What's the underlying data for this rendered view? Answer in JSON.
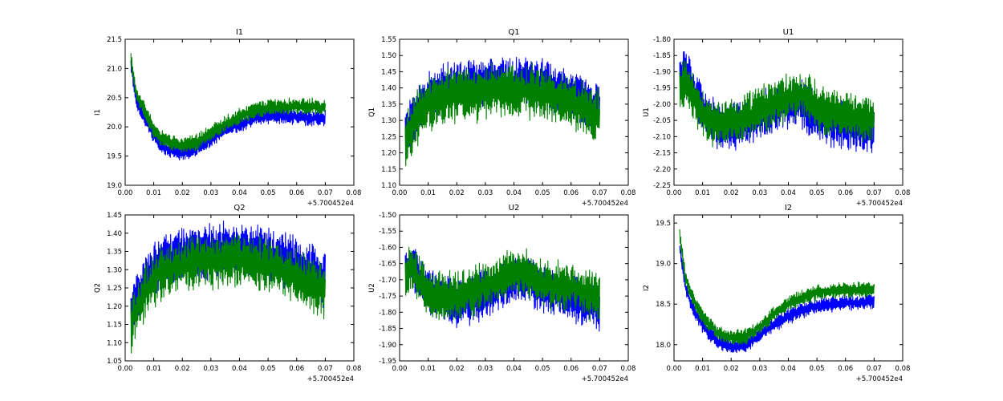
{
  "colors": {
    "series_1": "#0000ff",
    "series_2": "#008000",
    "frame": "#000000",
    "background": "#ffffff"
  },
  "chart_data": [
    {
      "type": "line",
      "title": "I1",
      "ylabel": "I1",
      "xlim": [
        0.0,
        0.08
      ],
      "ylim": [
        19.0,
        21.5
      ],
      "x_ticks": [
        "0.00",
        "0.01",
        "0.02",
        "0.03",
        "0.04",
        "0.05",
        "0.06",
        "0.07",
        "0.08"
      ],
      "y_ticks": [
        "19.0",
        "19.5",
        "20.0",
        "20.5",
        "21.0",
        "21.5"
      ],
      "x_offset_label": "+5.700452e4",
      "x": [
        0.002,
        0.004,
        0.006,
        0.008,
        0.01,
        0.012,
        0.015,
        0.02,
        0.025,
        0.03,
        0.035,
        0.04,
        0.045,
        0.05,
        0.055,
        0.06,
        0.065,
        0.07
      ],
      "series": [
        {
          "color": "blue",
          "values": [
            21.05,
            20.45,
            20.25,
            20.05,
            19.85,
            19.7,
            19.62,
            19.55,
            19.62,
            19.8,
            19.95,
            20.05,
            20.15,
            20.2,
            20.2,
            20.18,
            20.15,
            20.15
          ],
          "amplitude": 0.13
        },
        {
          "color": "green",
          "values": [
            21.15,
            20.55,
            20.35,
            20.15,
            19.95,
            19.82,
            19.75,
            19.68,
            19.74,
            19.9,
            20.05,
            20.18,
            20.28,
            20.33,
            20.35,
            20.35,
            20.35,
            20.33
          ],
          "amplitude": 0.13
        }
      ]
    },
    {
      "type": "line",
      "title": "Q1",
      "ylabel": "Q1",
      "xlim": [
        0.0,
        0.08
      ],
      "ylim": [
        1.1,
        1.55
      ],
      "x_ticks": [
        "0.00",
        "0.01",
        "0.02",
        "0.03",
        "0.04",
        "0.05",
        "0.06",
        "0.07",
        "0.08"
      ],
      "y_ticks": [
        "1.10",
        "1.15",
        "1.20",
        "1.25",
        "1.30",
        "1.35",
        "1.40",
        "1.45",
        "1.50",
        "1.55"
      ],
      "x_offset_label": "+5.700452e4",
      "x": [
        0.002,
        0.004,
        0.006,
        0.008,
        0.01,
        0.012,
        0.015,
        0.02,
        0.025,
        0.03,
        0.035,
        0.04,
        0.045,
        0.05,
        0.055,
        0.06,
        0.065,
        0.07
      ],
      "series": [
        {
          "color": "blue",
          "values": [
            1.25,
            1.3,
            1.32,
            1.35,
            1.37,
            1.38,
            1.4,
            1.41,
            1.41,
            1.42,
            1.42,
            1.42,
            1.42,
            1.41,
            1.4,
            1.38,
            1.36,
            1.33
          ],
          "amplitude": 0.07
        },
        {
          "color": "green",
          "values": [
            1.23,
            1.27,
            1.3,
            1.33,
            1.35,
            1.36,
            1.37,
            1.38,
            1.38,
            1.39,
            1.39,
            1.39,
            1.39,
            1.38,
            1.37,
            1.35,
            1.33,
            1.31
          ],
          "amplitude": 0.08
        }
      ]
    },
    {
      "type": "line",
      "title": "U1",
      "ylabel": "U1",
      "xlim": [
        0.0,
        0.08
      ],
      "ylim": [
        -2.25,
        -1.8
      ],
      "x_ticks": [
        "0.00",
        "0.01",
        "0.02",
        "0.03",
        "0.04",
        "0.05",
        "0.06",
        "0.07",
        "0.08"
      ],
      "y_ticks": [
        "-2.25",
        "-2.20",
        "-2.15",
        "-2.10",
        "-2.05",
        "-2.00",
        "-1.95",
        "-1.90",
        "-1.85",
        "-1.80"
      ],
      "x_offset_label": "+5.700452e4",
      "x": [
        0.002,
        0.004,
        0.006,
        0.008,
        0.01,
        0.012,
        0.015,
        0.02,
        0.025,
        0.03,
        0.035,
        0.04,
        0.045,
        0.05,
        0.055,
        0.06,
        0.065,
        0.07
      ],
      "series": [
        {
          "color": "blue",
          "values": [
            -1.93,
            -1.9,
            -1.94,
            -1.98,
            -2.02,
            -2.04,
            -2.06,
            -2.07,
            -2.06,
            -2.04,
            -2.02,
            -2.0,
            -2.0,
            -2.04,
            -2.06,
            -2.06,
            -2.07,
            -2.08
          ],
          "amplitude": 0.07
        },
        {
          "color": "green",
          "values": [
            -1.95,
            -1.92,
            -1.96,
            -2.0,
            -2.03,
            -2.05,
            -2.06,
            -2.05,
            -2.04,
            -2.02,
            -2.0,
            -1.98,
            -1.97,
            -2.01,
            -2.03,
            -2.03,
            -2.04,
            -2.05
          ],
          "amplitude": 0.07
        }
      ]
    },
    {
      "type": "line",
      "title": "Q2",
      "ylabel": "Q2",
      "xlim": [
        0.0,
        0.08
      ],
      "ylim": [
        1.05,
        1.45
      ],
      "x_ticks": [
        "0.00",
        "0.01",
        "0.02",
        "0.03",
        "0.04",
        "0.05",
        "0.06",
        "0.07",
        "0.08"
      ],
      "y_ticks": [
        "1.05",
        "1.10",
        "1.15",
        "1.20",
        "1.25",
        "1.30",
        "1.35",
        "1.40",
        "1.45"
      ],
      "x_offset_label": "+5.700452e4",
      "x": [
        0.002,
        0.004,
        0.006,
        0.008,
        0.01,
        0.012,
        0.015,
        0.02,
        0.025,
        0.03,
        0.035,
        0.04,
        0.045,
        0.05,
        0.055,
        0.06,
        0.065,
        0.07
      ],
      "series": [
        {
          "color": "blue",
          "values": [
            1.17,
            1.22,
            1.25,
            1.28,
            1.3,
            1.32,
            1.33,
            1.34,
            1.35,
            1.35,
            1.36,
            1.36,
            1.35,
            1.34,
            1.33,
            1.31,
            1.29,
            1.27
          ],
          "amplitude": 0.07
        },
        {
          "color": "green",
          "values": [
            1.15,
            1.19,
            1.22,
            1.25,
            1.27,
            1.29,
            1.3,
            1.31,
            1.32,
            1.32,
            1.33,
            1.33,
            1.32,
            1.31,
            1.3,
            1.28,
            1.26,
            1.24
          ],
          "amplitude": 0.07
        }
      ]
    },
    {
      "type": "line",
      "title": "U2",
      "ylabel": "U2",
      "xlim": [
        0.0,
        0.08
      ],
      "ylim": [
        -1.95,
        -1.5
      ],
      "x_ticks": [
        "0.00",
        "0.01",
        "0.02",
        "0.03",
        "0.04",
        "0.05",
        "0.06",
        "0.07",
        "0.08"
      ],
      "y_ticks": [
        "-1.95",
        "-1.90",
        "-1.85",
        "-1.80",
        "-1.75",
        "-1.70",
        "-1.65",
        "-1.60",
        "-1.55",
        "-1.50"
      ],
      "x_offset_label": "+5.700452e4",
      "x": [
        0.002,
        0.004,
        0.006,
        0.008,
        0.01,
        0.012,
        0.015,
        0.02,
        0.025,
        0.03,
        0.035,
        0.04,
        0.045,
        0.05,
        0.055,
        0.06,
        0.065,
        0.07
      ],
      "series": [
        {
          "color": "blue",
          "values": [
            -1.68,
            -1.64,
            -1.67,
            -1.71,
            -1.73,
            -1.75,
            -1.76,
            -1.77,
            -1.76,
            -1.74,
            -1.72,
            -1.7,
            -1.7,
            -1.73,
            -1.74,
            -1.75,
            -1.77,
            -1.79
          ],
          "amplitude": 0.07
        },
        {
          "color": "green",
          "values": [
            -1.7,
            -1.66,
            -1.69,
            -1.72,
            -1.74,
            -1.75,
            -1.75,
            -1.75,
            -1.74,
            -1.72,
            -1.7,
            -1.68,
            -1.68,
            -1.71,
            -1.72,
            -1.72,
            -1.74,
            -1.76
          ],
          "amplitude": 0.07
        }
      ]
    },
    {
      "type": "line",
      "title": "I2",
      "ylabel": "I2",
      "xlim": [
        0.0,
        0.08
      ],
      "ylim": [
        17.8,
        19.6
      ],
      "x_ticks": [
        "0.00",
        "0.01",
        "0.02",
        "0.03",
        "0.04",
        "0.05",
        "0.06",
        "0.07",
        "0.08"
      ],
      "y_ticks": [
        "18.0",
        "18.5",
        "19.0",
        "19.5"
      ],
      "x_offset_label": "+5.700452e4",
      "x": [
        0.002,
        0.004,
        0.006,
        0.008,
        0.01,
        0.012,
        0.015,
        0.02,
        0.025,
        0.03,
        0.035,
        0.04,
        0.045,
        0.05,
        0.055,
        0.06,
        0.065,
        0.07
      ],
      "series": [
        {
          "color": "blue",
          "values": [
            19.2,
            18.7,
            18.5,
            18.35,
            18.25,
            18.15,
            18.05,
            17.98,
            18.0,
            18.12,
            18.25,
            18.35,
            18.42,
            18.48,
            18.5,
            18.52,
            18.52,
            18.52
          ],
          "amplitude": 0.09
        },
        {
          "color": "green",
          "values": [
            19.35,
            18.82,
            18.62,
            18.46,
            18.35,
            18.26,
            18.15,
            18.08,
            18.1,
            18.22,
            18.38,
            18.5,
            18.58,
            18.64,
            18.66,
            18.68,
            18.68,
            18.68
          ],
          "amplitude": 0.09
        }
      ]
    }
  ]
}
